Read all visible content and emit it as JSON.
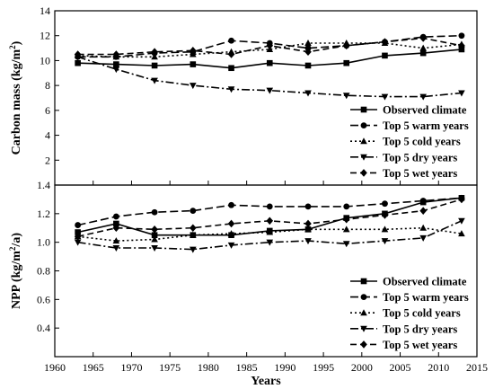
{
  "chart_data": [
    {
      "type": "line",
      "ylabel": "Carbon mass (kg/m",
      "ylabel_sup": "2",
      "ylabel_end": ")",
      "ylim": [
        0,
        14
      ],
      "yticks": [
        2,
        4,
        6,
        8,
        10,
        12,
        14
      ],
      "x": [
        1963,
        1968,
        1973,
        1978,
        1983,
        1988,
        1993,
        1998,
        2003,
        2008,
        2013
      ],
      "series": [
        {
          "name": "Observed climate",
          "values": [
            9.8,
            9.7,
            9.6,
            9.7,
            9.4,
            9.8,
            9.6,
            9.8,
            10.4,
            10.6,
            10.9
          ]
        },
        {
          "name": "Top 5 warm years",
          "values": [
            10.3,
            10.3,
            10.6,
            10.7,
            11.6,
            11.4,
            11.0,
            11.2,
            11.5,
            11.9,
            12.0
          ]
        },
        {
          "name": "Top 5 cold years",
          "values": [
            10.4,
            10.3,
            10.3,
            10.5,
            10.7,
            10.9,
            11.4,
            11.4,
            11.4,
            11.0,
            11.3
          ]
        },
        {
          "name": "Top 5 dry years",
          "values": [
            10.3,
            9.3,
            8.4,
            8.0,
            7.7,
            7.6,
            7.4,
            7.2,
            7.1,
            7.1,
            7.4
          ]
        },
        {
          "name": "Top 5 wet years",
          "values": [
            10.5,
            10.5,
            10.7,
            10.8,
            10.5,
            11.2,
            10.7,
            11.2,
            11.5,
            11.8,
            11.2
          ]
        }
      ],
      "legend_position": "bottom-right"
    },
    {
      "type": "line",
      "xlabel": "Years",
      "ylabel": "NPP (kg/m",
      "ylabel_sup": "2",
      "ylabel_end": "/a)",
      "ylim": [
        0.2,
        1.4
      ],
      "yticks": [
        0.4,
        0.6,
        0.8,
        1.0,
        1.2,
        1.4
      ],
      "xlim": [
        1960,
        2015
      ],
      "xticks": [
        1960,
        1965,
        1970,
        1975,
        1980,
        1985,
        1990,
        1995,
        2000,
        2005,
        2010,
        2015
      ],
      "x": [
        1963,
        1968,
        1973,
        1978,
        1983,
        1988,
        1993,
        1998,
        2003,
        2008,
        2013
      ],
      "series": [
        {
          "name": "Observed climate",
          "values": [
            1.07,
            1.13,
            1.05,
            1.05,
            1.05,
            1.08,
            1.09,
            1.17,
            1.2,
            1.28,
            1.31
          ]
        },
        {
          "name": "Top 5 warm years",
          "values": [
            1.12,
            1.18,
            1.21,
            1.22,
            1.26,
            1.25,
            1.25,
            1.25,
            1.27,
            1.29,
            1.31
          ]
        },
        {
          "name": "Top 5 cold years",
          "values": [
            1.04,
            1.01,
            1.02,
            1.05,
            1.06,
            1.07,
            1.09,
            1.09,
            1.09,
            1.1,
            1.06
          ]
        },
        {
          "name": "Top 5 dry years",
          "values": [
            1.0,
            0.96,
            0.96,
            0.95,
            0.98,
            1.0,
            1.01,
            0.99,
            1.01,
            1.03,
            1.15
          ]
        },
        {
          "name": "Top 5 wet years",
          "values": [
            1.04,
            1.1,
            1.09,
            1.1,
            1.13,
            1.15,
            1.13,
            1.16,
            1.19,
            1.22,
            1.3
          ]
        }
      ],
      "legend_position": "bottom-right"
    }
  ],
  "series_styles": [
    {
      "dash": "",
      "marker": "square"
    },
    {
      "dash": "9,4",
      "marker": "circle"
    },
    {
      "dash": "2,3",
      "marker": "triangle-up"
    },
    {
      "dash": "9,3,2,3",
      "marker": "triangle-down"
    },
    {
      "dash": "7,4",
      "marker": "diamond"
    }
  ],
  "colors": {
    "line": "#000000",
    "background": "#ffffff"
  }
}
